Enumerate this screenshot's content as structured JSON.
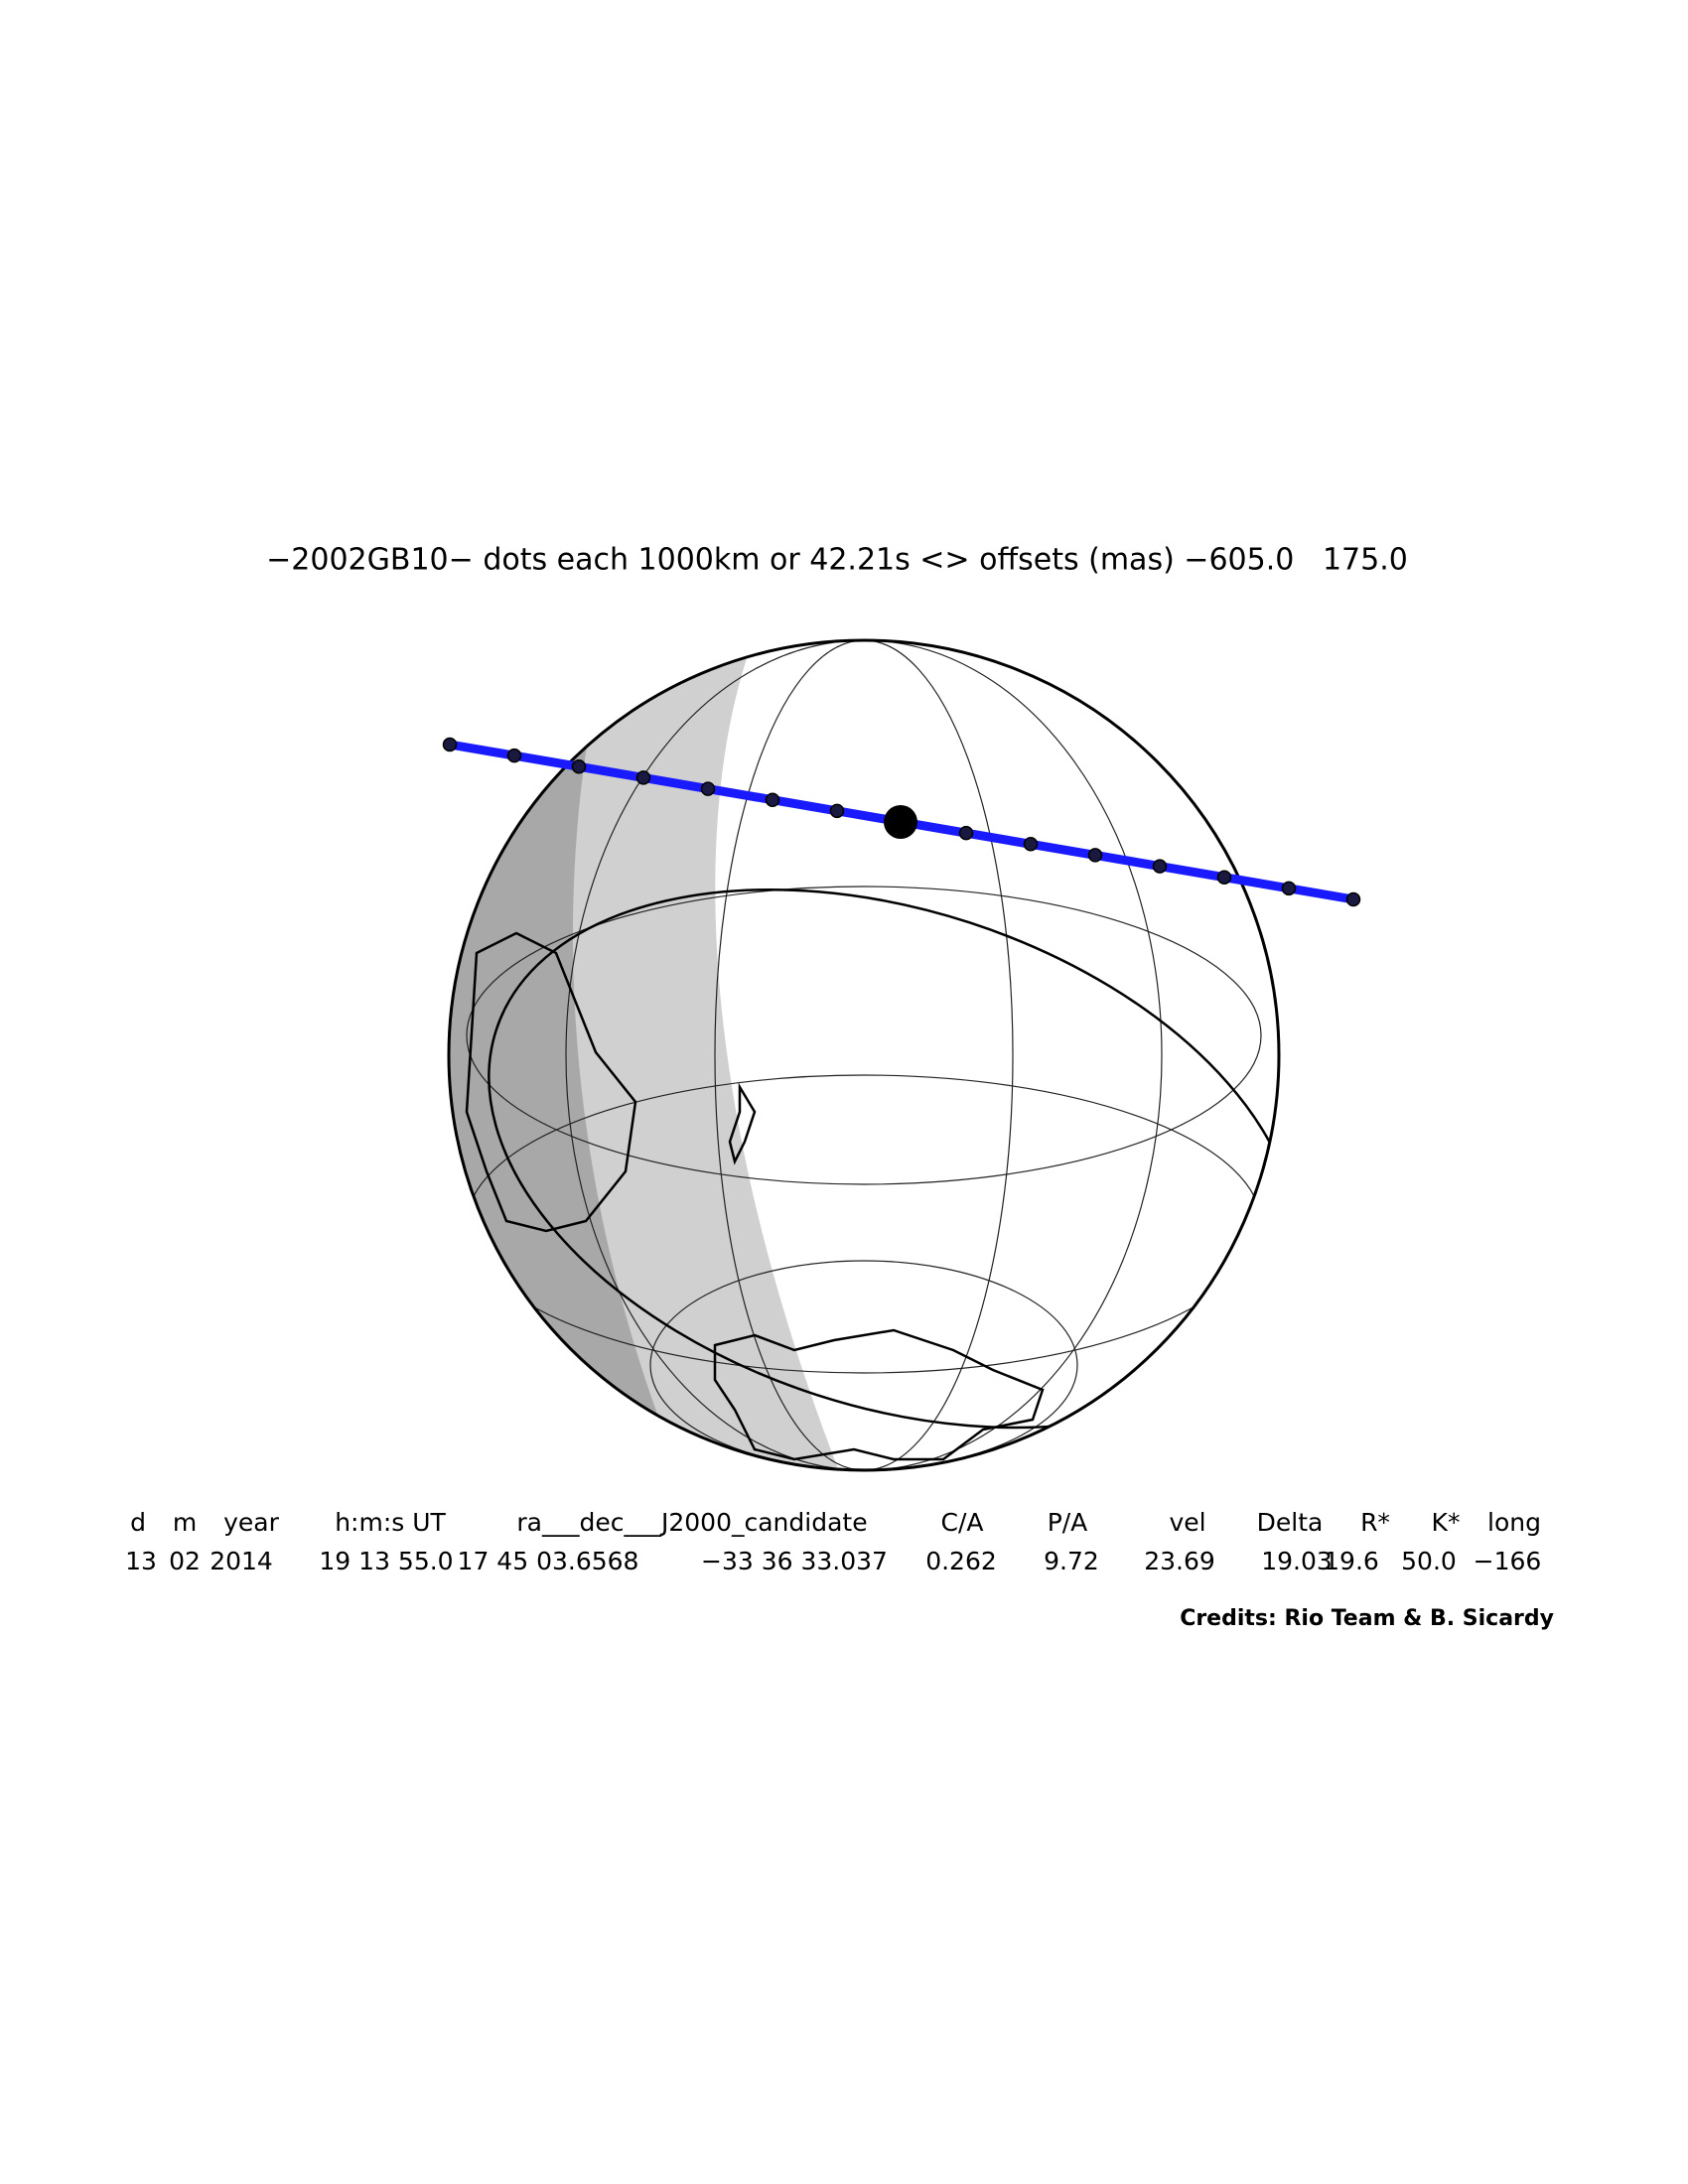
{
  "title": "−2002GB10− dots each 1000km or 42.21s <> offsets (mas) −605.0   175.0",
  "table": {
    "headers": [
      "d",
      "m",
      "year",
      "h:m:s UT",
      "ra___dec___J2000_candidate",
      "C/A",
      "P/A",
      "vel",
      "Delta",
      "R*",
      "K*",
      "long"
    ],
    "values": [
      "13",
      "02",
      "2014",
      "19 13 55.0",
      "17 45 03.6568",
      "−33 36 33.037",
      "0.262",
      "9.72",
      "23.69",
      "19.03",
      "19.6",
      "50.0",
      "−166"
    ]
  },
  "credits": "Credits: Rio Team & B. Sicardy"
}
